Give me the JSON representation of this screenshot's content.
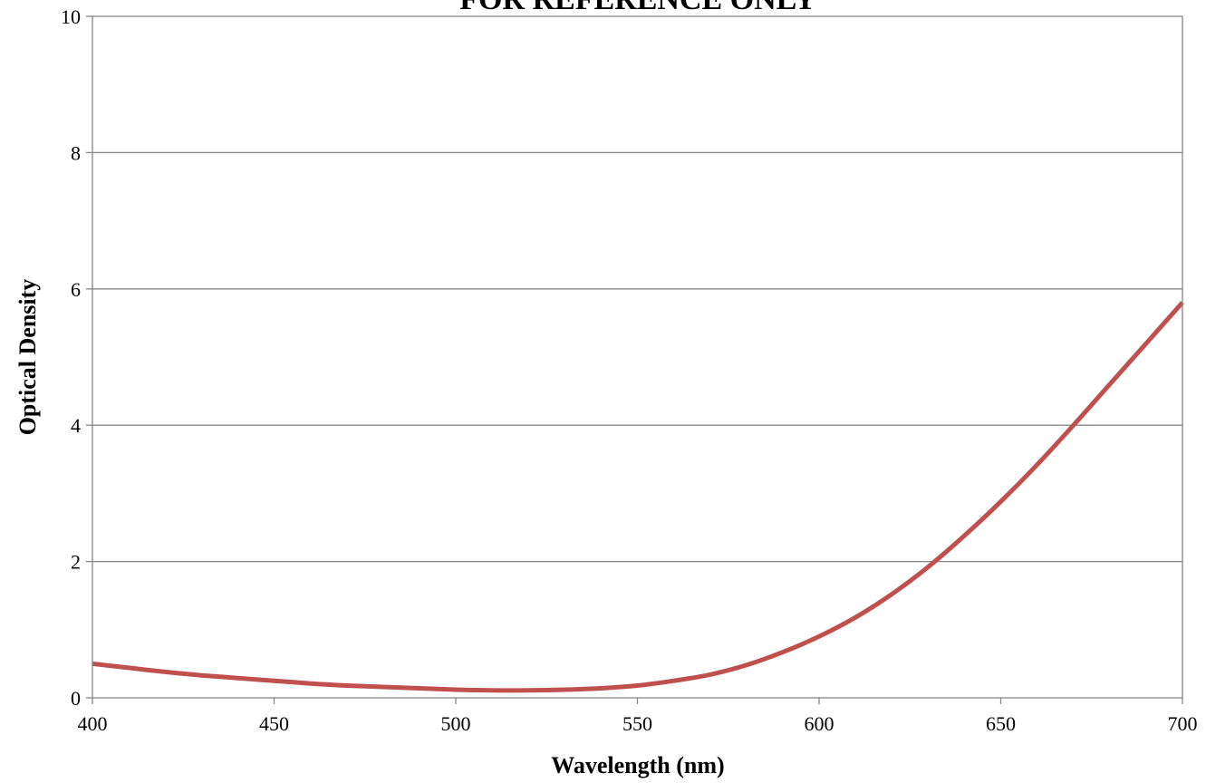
{
  "chart_data": {
    "type": "line",
    "title": "FOR REFERENCE ONLY",
    "xlabel": "Wavelength (nm)",
    "ylabel": "Optical Density",
    "xlim": [
      400,
      700
    ],
    "ylim": [
      0,
      10
    ],
    "x_ticks": [
      "400",
      "450",
      "500",
      "550",
      "600",
      "650",
      "700"
    ],
    "y_ticks": [
      "0",
      "2",
      "4",
      "6",
      "8",
      "10"
    ],
    "grid": "horizontal",
    "legend": "none",
    "series": [
      {
        "color": "#c0504d",
        "x": [
          400,
          410,
          420,
          430,
          440,
          450,
          460,
          470,
          480,
          490,
          500,
          510,
          520,
          530,
          540,
          550,
          560,
          570,
          580,
          590,
          600,
          610,
          620,
          630,
          640,
          650,
          660,
          670,
          680,
          690,
          700
        ],
        "y": [
          0.5,
          0.44,
          0.38,
          0.33,
          0.29,
          0.25,
          0.21,
          0.18,
          0.16,
          0.14,
          0.12,
          0.11,
          0.11,
          0.12,
          0.14,
          0.18,
          0.25,
          0.34,
          0.48,
          0.67,
          0.9,
          1.18,
          1.52,
          1.92,
          2.38,
          2.88,
          3.42,
          4.0,
          4.6,
          5.2,
          5.8
        ]
      }
    ]
  }
}
